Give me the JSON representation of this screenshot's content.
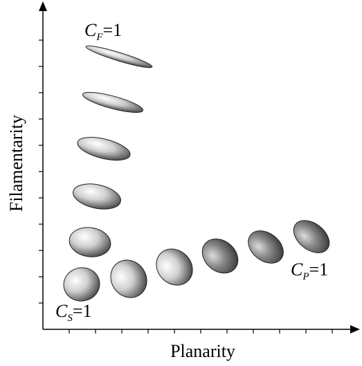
{
  "axes": {
    "x_label": "Planarity",
    "y_label": "Filamentarity"
  },
  "labels": [
    {
      "main": "C",
      "sub": "F",
      "rest": "=1"
    },
    {
      "main": "C",
      "sub": "S",
      "rest": "=1"
    },
    {
      "main": "C",
      "sub": "P",
      "rest": "=1"
    }
  ]
}
